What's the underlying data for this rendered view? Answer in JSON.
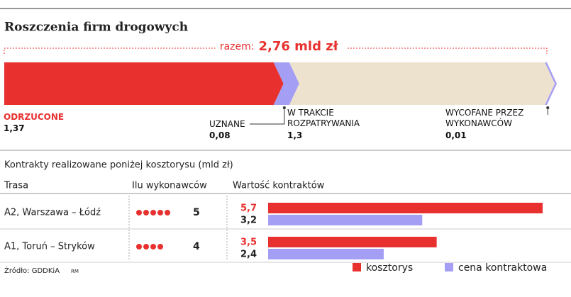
{
  "chart_data": [
    {
      "type": "stacked_bar",
      "title": "Roszczenia firm drogowych",
      "total_label": "razem:",
      "total": 2.76,
      "total_value_label": "2,76 mld zł",
      "categories": [
        "ODRZUCONE",
        "UZNANE",
        "W TRAKCIE ROZPATRYWANIA",
        "WYCOFANE PRZEZ WYKONAWCÓW"
      ],
      "values": [
        1.37,
        0.08,
        1.3,
        0.01
      ],
      "value_labels": [
        "1,37",
        "0,08",
        "1,3",
        "0,01"
      ],
      "colors": [
        "#e8312f",
        "#a59ef5",
        "#ede2cd",
        "#a59ef5"
      ]
    },
    {
      "type": "bar",
      "subtitle": "Kontrakty realizowane poniżej kosztorysu (mld zł)",
      "headers": [
        "Trasa",
        "Ilu wykonawców",
        "Wartość kontraktów"
      ],
      "categories": [
        "A2, Warszawa – Łódź",
        "A1, Toruń – Stryków"
      ],
      "bidders": [
        5,
        4
      ],
      "bidder_color": "#e8312f",
      "xlim": [
        0,
        5.7
      ],
      "series": [
        {
          "name": "kosztorys",
          "color": "#e8312f",
          "values": [
            5.7,
            3.5
          ],
          "value_labels": [
            "5,7",
            "3,5"
          ]
        },
        {
          "name": "cena kontraktowa",
          "color": "#a59ef5",
          "values": [
            3.2,
            2.4
          ],
          "value_labels": [
            "3,2",
            "2,4"
          ]
        }
      ],
      "source": "Źródło: GDDKiA",
      "credit": "RM"
    }
  ]
}
